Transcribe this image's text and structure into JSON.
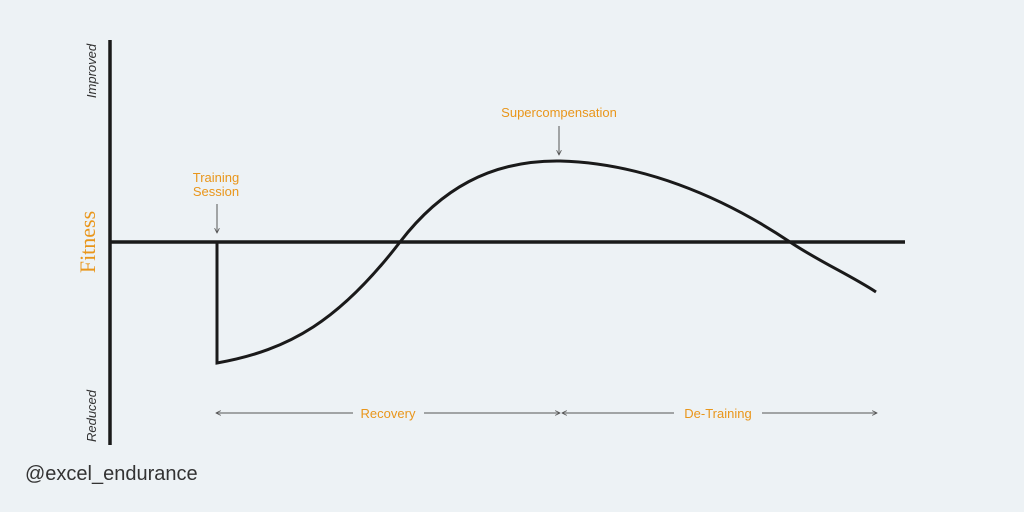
{
  "axis": {
    "y_label": "Fitness",
    "y_top_label": "Improved",
    "y_bottom_label": "Reduced"
  },
  "annotations": {
    "training_session_line1": "Training",
    "training_session_line2": "Session",
    "supercompensation": "Supercompensation"
  },
  "phases": {
    "recovery": "Recovery",
    "de_training": "De-Training"
  },
  "watermark": "@excel_endurance",
  "colors": {
    "background": "#edf2f5",
    "line": "#1a1a1a",
    "accent": "#e9961b",
    "arrow": "#555555"
  }
}
